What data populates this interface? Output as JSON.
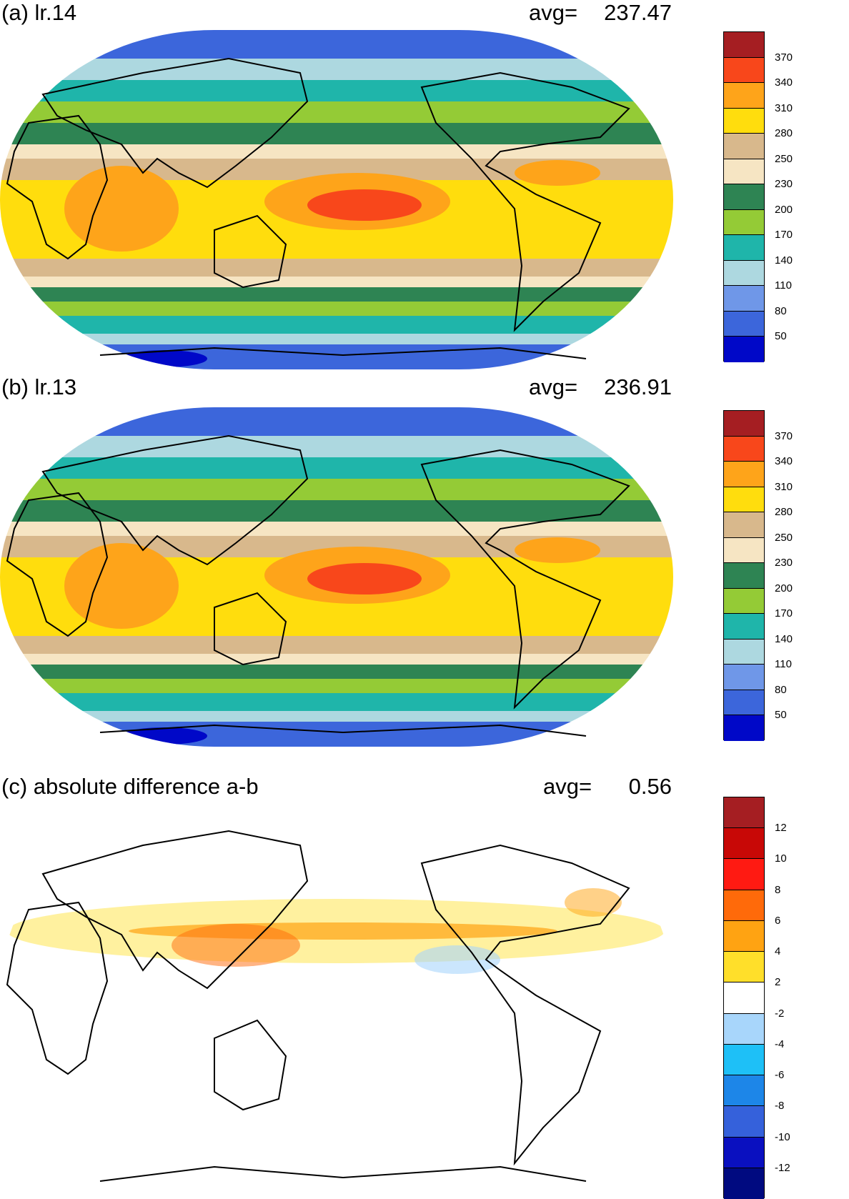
{
  "panels": [
    {
      "title": "(a) lr.14",
      "avg_label": "avg=",
      "avg_value": "237.47",
      "map": "full",
      "colorbar": {
        "colors": [
          "#a51e22",
          "#f8471b",
          "#fea41a",
          "#ffdd0d",
          "#d8b88c",
          "#f6e5c3",
          "#2e8453",
          "#94cb36",
          "#1fb5aa",
          "#add8e0",
          "#6f97e8",
          "#3c66db",
          "#0008c8"
        ],
        "labels": [
          "370",
          "340",
          "310",
          "280",
          "250",
          "230",
          "200",
          "170",
          "140",
          "110",
          "80",
          "50"
        ]
      }
    },
    {
      "title": "(b) lr.13",
      "avg_label": "avg=",
      "avg_value": "236.91",
      "map": "full",
      "colorbar": {
        "colors": [
          "#a51e22",
          "#f8471b",
          "#fea41a",
          "#ffdd0d",
          "#d8b88c",
          "#f6e5c3",
          "#2e8453",
          "#94cb36",
          "#1fb5aa",
          "#add8e0",
          "#6f97e8",
          "#3c66db",
          "#0008c8"
        ],
        "labels": [
          "370",
          "340",
          "310",
          "280",
          "250",
          "230",
          "200",
          "170",
          "140",
          "110",
          "80",
          "50"
        ]
      }
    },
    {
      "title": "(c) absolute difference a-b",
      "avg_label": "avg=",
      "avg_value": "0.56",
      "map": "diff",
      "colorbar": {
        "colors": [
          "#a51e22",
          "#c80806",
          "#ff1a12",
          "#ff6a0a",
          "#ffa312",
          "#ffdf2a",
          "#ffffff",
          "#a8d6fb",
          "#1ec0f7",
          "#1d86e8",
          "#3561db",
          "#0a10c0",
          "#000a80"
        ],
        "labels": [
          "12",
          "10",
          "8",
          "6",
          "4",
          "2",
          "-2",
          "-4",
          "-6",
          "-8",
          "-10",
          "-12"
        ]
      }
    }
  ]
}
